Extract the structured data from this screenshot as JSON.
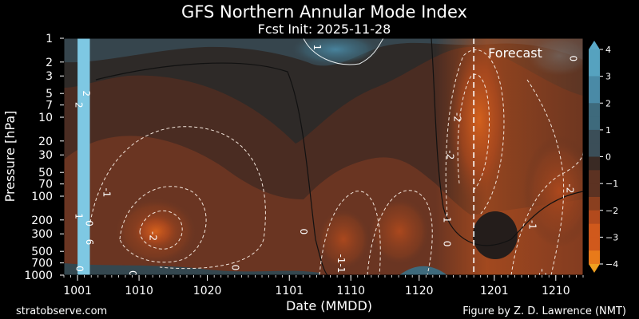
{
  "chart_data": {
    "type": "heatmap",
    "title": "GFS Northern Annular Mode Index",
    "subtitle": "Fcst Init: 2025-11-28",
    "xlabel": "Date (MMDD)",
    "ylabel": "Pressure [hPa]",
    "x_ticks": [
      "1001",
      "1010",
      "1020",
      "1101",
      "1110",
      "1120",
      "1201",
      "1210"
    ],
    "x_tick_days": [
      0,
      9,
      19,
      31,
      40,
      50,
      61,
      70
    ],
    "x_range_days": [
      -2,
      74
    ],
    "forecast_start_day": 58,
    "forecast_label": "Forecast",
    "y_ticks": [
      1,
      2,
      3,
      5,
      7,
      10,
      20,
      30,
      50,
      70,
      100,
      200,
      300,
      500,
      700,
      1000
    ],
    "y_range": [
      1,
      1000
    ],
    "y_scale": "log",
    "y_reversed": true,
    "colorbar": {
      "ticks": [
        4,
        3,
        2,
        1,
        0,
        -1,
        -2,
        -3,
        -4
      ],
      "range": [
        -4,
        4
      ],
      "extend": "both",
      "colors_pos": [
        "#3b4e58",
        "#3e6a7c",
        "#4a8aa6",
        "#56a2bf"
      ],
      "colors_neg": [
        "#3a2a24",
        "#5c3222",
        "#8a3f1f",
        "#b24a1d",
        "#d0591c",
        "#e87a1a"
      ],
      "upper_arrow_color": "#5aa9c8",
      "lower_arrow_color": "#f0a020"
    },
    "missing_band": {
      "from_day": 0,
      "to_day": 1.8,
      "color": "#7ec8e3"
    },
    "contour_labels": [
      {
        "text": "1",
        "day": 35,
        "p": 1.3
      },
      {
        "text": "0",
        "day": 72.5,
        "p": 1.8
      },
      {
        "text": "2",
        "day": 1.2,
        "p": 5
      },
      {
        "text": "2",
        "day": 0.1,
        "p": 7
      },
      {
        "text": "-2",
        "day": 55.5,
        "p": 10
      },
      {
        "text": "-2",
        "day": 54.5,
        "p": 30
      },
      {
        "text": "-1",
        "day": 4.2,
        "p": 90
      },
      {
        "text": "-2",
        "day": 72,
        "p": 80
      },
      {
        "text": "1",
        "day": 0.1,
        "p": 180
      },
      {
        "text": "0",
        "day": 1.6,
        "p": 220
      },
      {
        "text": "-1",
        "day": 54,
        "p": 190
      },
      {
        "text": "-1",
        "day": 66.5,
        "p": 230
      },
      {
        "text": "0",
        "day": 33,
        "p": 280
      },
      {
        "text": "-2",
        "day": 11,
        "p": 320
      },
      {
        "text": "6",
        "day": 1.7,
        "p": 380
      },
      {
        "text": "0",
        "day": 54,
        "p": 400
      },
      {
        "text": "-1",
        "day": 38.5,
        "p": 620
      },
      {
        "text": "0",
        "day": 0.2,
        "p": 830
      },
      {
        "text": "0",
        "day": 23,
        "p": 800
      },
      {
        "text": "0",
        "day": 8,
        "p": 950
      },
      {
        "text": "-1",
        "day": 38.5,
        "p": 820
      },
      {
        "text": "-1",
        "day": 68,
        "p": 950
      }
    ]
  },
  "footer": {
    "left": "stratobserve.com",
    "right": "Figure by Z. D. Lawrence (NMT)"
  }
}
